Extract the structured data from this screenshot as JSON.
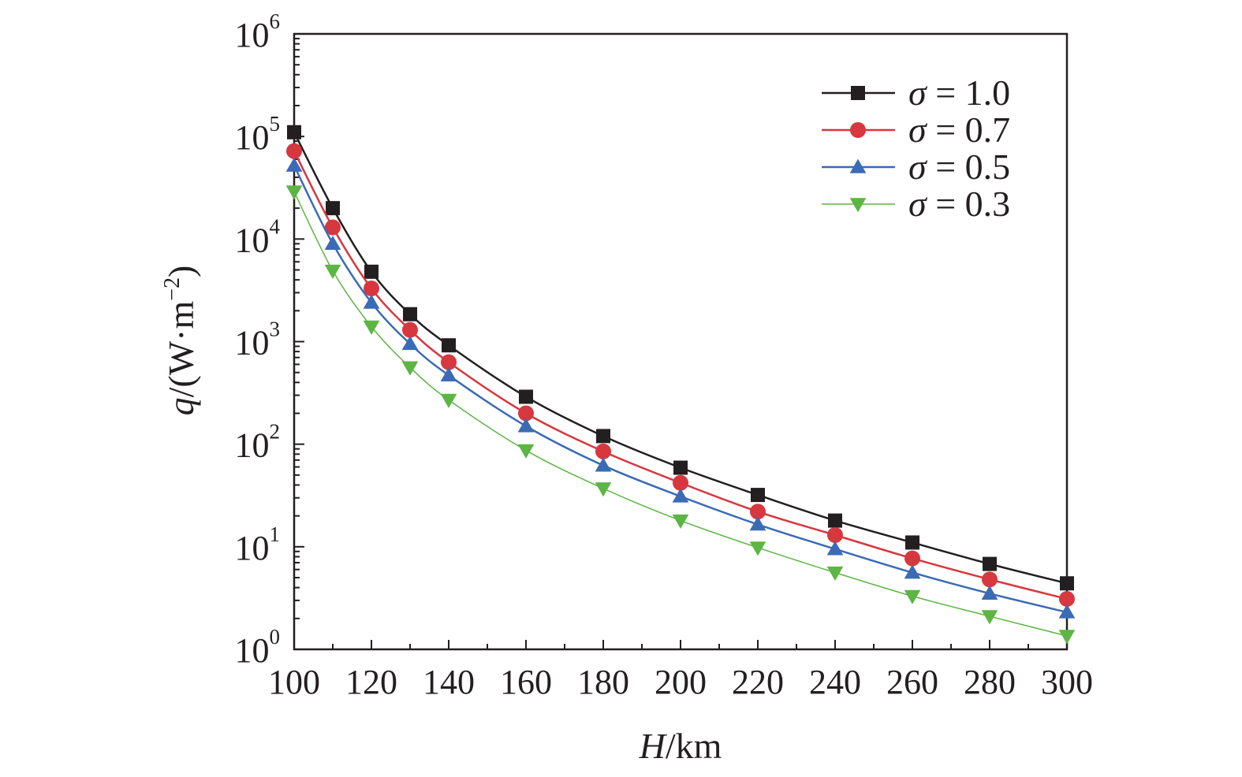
{
  "chart_data": {
    "type": "line",
    "xlabel": {
      "var": "H",
      "unit": "/km"
    },
    "ylabel": {
      "var": "q",
      "unit": "/(W·m",
      "exp": "−2",
      "close": ")"
    },
    "xlim": [
      100,
      300
    ],
    "ylim": [
      1,
      1000000
    ],
    "yscale": "log",
    "xticks": [
      "100",
      "120",
      "140",
      "160",
      "180",
      "200",
      "220",
      "240",
      "260",
      "280",
      "300"
    ],
    "yticks": [
      {
        "base": "10",
        "exp": "0"
      },
      {
        "base": "10",
        "exp": "1"
      },
      {
        "base": "10",
        "exp": "2"
      },
      {
        "base": "10",
        "exp": "3"
      },
      {
        "base": "10",
        "exp": "4"
      },
      {
        "base": "10",
        "exp": "5"
      },
      {
        "base": "10",
        "exp": "6"
      }
    ],
    "grid": false,
    "legend_position": "top-right",
    "x": [
      100,
      110,
      120,
      130,
      140,
      160,
      180,
      200,
      220,
      240,
      260,
      280,
      300
    ],
    "series": [
      {
        "name": "σ = 1.0",
        "symbol": "σ",
        "eq": " = 1.0",
        "marker": "square",
        "color": "#231f20",
        "values": [
          110000,
          20000,
          4800,
          1850,
          920,
          290,
          120,
          59,
          32,
          18,
          11,
          6.8,
          4.4
        ]
      },
      {
        "name": "σ = 0.7",
        "symbol": "σ",
        "eq": " = 0.7",
        "marker": "circle",
        "color": "#d7373f",
        "values": [
          72000,
          13000,
          3300,
          1300,
          630,
          200,
          85,
          42,
          22,
          13,
          7.7,
          4.8,
          3.1
        ]
      },
      {
        "name": "σ = 0.5",
        "symbol": "σ",
        "eq": " = 0.5",
        "marker": "triangle-up",
        "color": "#3b6bb5",
        "values": [
          52000,
          9000,
          2400,
          950,
          470,
          150,
          62,
          31,
          16.5,
          9.5,
          5.6,
          3.5,
          2.3
        ]
      },
      {
        "name": "σ = 0.3",
        "symbol": "σ",
        "eq": " = 0.3",
        "marker": "triangle-down",
        "color": "#5db544",
        "values": [
          29000,
          4900,
          1400,
          560,
          270,
          87,
          37,
          18,
          9.8,
          5.6,
          3.3,
          2.1,
          1.35
        ]
      }
    ]
  }
}
